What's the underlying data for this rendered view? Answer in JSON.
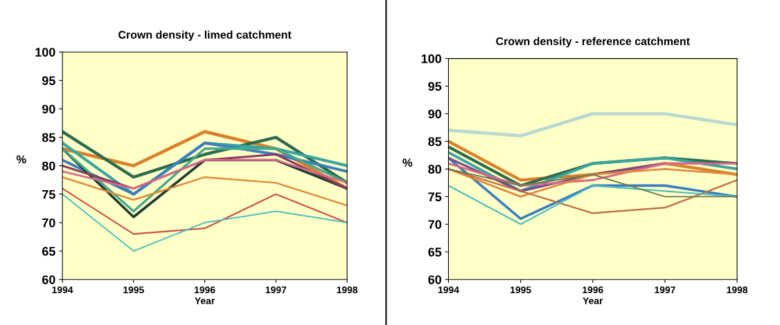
{
  "chart_data": [
    {
      "type": "line",
      "title": "Crown density - limed catchment",
      "xlabel": "Year",
      "ylabel": "%",
      "categories": [
        "1994",
        "1995",
        "1996",
        "1997",
        "1998"
      ],
      "ylim": [
        60,
        100
      ],
      "yticks": [
        60,
        65,
        70,
        75,
        80,
        85,
        90,
        95,
        100
      ],
      "grid": false,
      "legend": false,
      "series": [
        {
          "color": "#d9822b",
          "values": [
            83,
            80,
            86,
            83,
            76
          ]
        },
        {
          "color": "#2e6b4f",
          "values": [
            86,
            78,
            82,
            85,
            77
          ]
        },
        {
          "color": "#3aa5a0",
          "values": [
            84,
            75,
            84,
            83,
            80
          ]
        },
        {
          "color": "#3a7ebf",
          "values": [
            81,
            75,
            84,
            82,
            79
          ]
        },
        {
          "color": "#1f3b2f",
          "values": [
            83,
            71,
            81,
            81,
            76
          ]
        },
        {
          "color": "#45a88a",
          "values": [
            83,
            72,
            83,
            83,
            77
          ]
        },
        {
          "color": "#8a3a5a",
          "values": [
            80,
            76,
            81,
            82,
            76
          ]
        },
        {
          "color": "#d86a8c",
          "values": [
            79,
            76,
            81,
            81,
            77
          ]
        },
        {
          "color": "#e08a3a",
          "values": [
            78,
            74,
            78,
            77,
            73
          ]
        },
        {
          "color": "#cc5040",
          "values": [
            76,
            68,
            69,
            75,
            70
          ]
        },
        {
          "color": "#4fbcc0",
          "values": [
            75,
            65,
            70,
            72,
            70
          ]
        }
      ]
    },
    {
      "type": "line",
      "title": "Crown density - reference catchment",
      "xlabel": "Year",
      "ylabel": "%",
      "categories": [
        "1994",
        "1995",
        "1996",
        "1997",
        "1998"
      ],
      "ylim": [
        60,
        100
      ],
      "yticks": [
        60,
        65,
        70,
        75,
        80,
        85,
        90,
        95,
        100
      ],
      "grid": false,
      "legend": false,
      "series": [
        {
          "color": "#b8d8d0",
          "values": [
            87,
            86,
            90,
            90,
            88
          ]
        },
        {
          "color": "#d9822b",
          "values": [
            85,
            78,
            79,
            81,
            79
          ]
        },
        {
          "color": "#2e6b4f",
          "values": [
            84,
            77,
            81,
            82,
            81
          ]
        },
        {
          "color": "#3aa5a0",
          "values": [
            83,
            76,
            81,
            82,
            80
          ]
        },
        {
          "color": "#3a7ebf",
          "values": [
            82,
            71,
            77,
            77,
            75
          ]
        },
        {
          "color": "#7b4a8a",
          "values": [
            82,
            76,
            79,
            81,
            81
          ]
        },
        {
          "color": "#d86a8c",
          "values": [
            81,
            77,
            78,
            81,
            81
          ]
        },
        {
          "color": "#e08a3a",
          "values": [
            80,
            75,
            79,
            80,
            79
          ]
        },
        {
          "color": "#c0704a",
          "values": [
            80,
            76,
            72,
            73,
            78
          ]
        },
        {
          "color": "#4fbcc0",
          "values": [
            77,
            70,
            77,
            76,
            75
          ]
        },
        {
          "color": "#6a7a4a",
          "values": [
            80,
            77,
            79,
            75,
            75
          ]
        }
      ]
    }
  ]
}
